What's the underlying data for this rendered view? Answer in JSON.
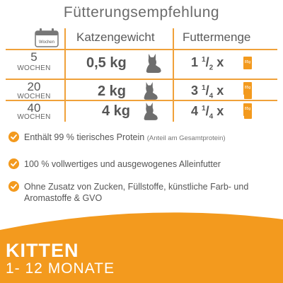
{
  "title": "Fütterungsempfehlung",
  "table": {
    "calendar_label": "Wochen",
    "header_weight": "Katzengewicht",
    "header_amount": "Futtermenge",
    "pouch_label": "85g",
    "rows": [
      {
        "weeks": "5",
        "weeks_label": "WOCHEN",
        "weight": "0,5 kg",
        "amount_whole": "1",
        "amount_num": "1",
        "amount_den": "2",
        "amount_x": "x"
      },
      {
        "weeks": "20",
        "weeks_label": "WOCHEN",
        "weight": "2 kg",
        "amount_whole": "3",
        "amount_num": "1",
        "amount_den": "4",
        "amount_x": "x"
      },
      {
        "weeks": "40",
        "weeks_label": "WOCHEN",
        "weight": "4 kg",
        "amount_whole": "4",
        "amount_num": "1",
        "amount_den": "4",
        "amount_x": "x"
      }
    ]
  },
  "features": [
    {
      "text": "Enthält 99 % tierisches Protein",
      "note": "(Anteil am Gesamtprotein)"
    },
    {
      "text": "100 % vollwertiges und ausgewogenes Alleinfutter",
      "note": ""
    },
    {
      "text": "Ohne Zusatz von Zucken, Füllstoffe, künstliche Farb- und Aromastoffe & GVO",
      "note": ""
    }
  ],
  "banner": {
    "title": "KITTEN",
    "subtitle": "1- 12 MONATE"
  },
  "colors": {
    "accent": "#f39a1e",
    "text": "#5a5a5a"
  }
}
